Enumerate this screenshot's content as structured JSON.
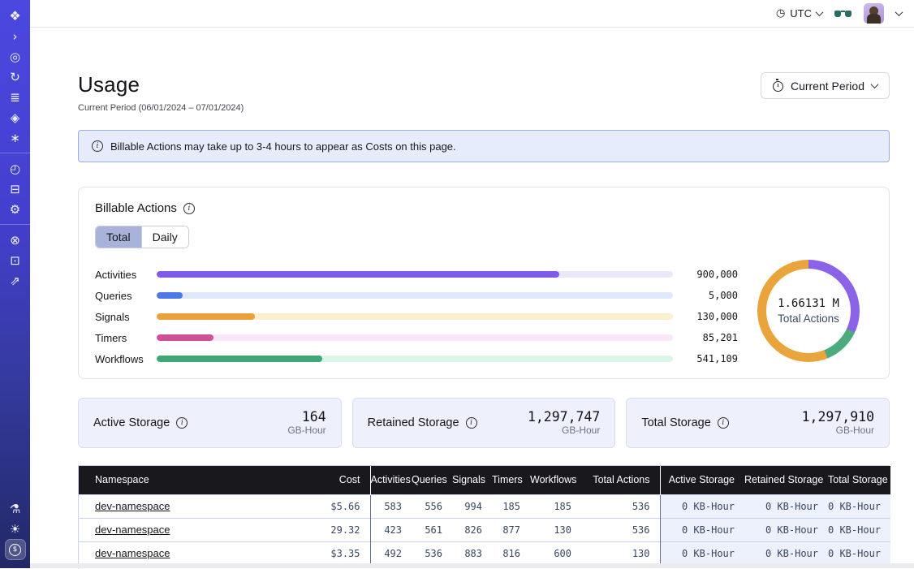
{
  "sidebar": {
    "groups": [
      {
        "items": [
          {
            "name": "temporal-logo",
            "glyph": "❖"
          },
          {
            "name": "collapse",
            "glyph": "›"
          },
          {
            "name": "namespaces",
            "glyph": "◎"
          },
          {
            "name": "schedules",
            "glyph": "↻"
          },
          {
            "name": "layers",
            "glyph": "≣"
          },
          {
            "name": "deployments",
            "glyph": "◈"
          },
          {
            "name": "nexus",
            "glyph": "∗"
          }
        ]
      },
      {
        "items": [
          {
            "name": "usage-gauge",
            "glyph": "◴"
          },
          {
            "name": "billing-window",
            "glyph": "⊟"
          },
          {
            "name": "settings-gear",
            "glyph": "⚙"
          }
        ]
      },
      {
        "items": [
          {
            "name": "support",
            "glyph": "⊗"
          },
          {
            "name": "docs",
            "glyph": "⊡"
          },
          {
            "name": "quickstart-rocket",
            "glyph": "⇗"
          }
        ]
      }
    ],
    "footer_items": [
      {
        "name": "labs-flask",
        "glyph": "⚗"
      },
      {
        "name": "theme-sun",
        "glyph": "☀"
      },
      {
        "name": "usage-billing-dollar",
        "glyph": "$"
      }
    ]
  },
  "topbar": {
    "timezone": "UTC"
  },
  "header": {
    "title": "Usage",
    "subtitle": "Current Period (06/01/2024 – 07/01/2024)",
    "period_button_label": "Current Period"
  },
  "banner": {
    "text": "Billable Actions may take up to 3-4 hours to appear as Costs on this page."
  },
  "billable_actions": {
    "title": "Billable Actions",
    "tabs": [
      {
        "label": "Total"
      },
      {
        "label": "Daily"
      }
    ],
    "active_tab": "Total",
    "bars": [
      {
        "label": "Activities",
        "value": "900,000",
        "percent": 78,
        "color": "#7e5bea",
        "track": "#ece6fb"
      },
      {
        "label": "Queries",
        "value": "5,000",
        "percent": 5,
        "color": "#4d78e8",
        "track": "#dfe8fa"
      },
      {
        "label": "Signals",
        "value": "130,000",
        "percent": 19,
        "color": "#e9a23b",
        "track": "#fbf0d0"
      },
      {
        "label": "Timers",
        "value": "85,201",
        "percent": 11,
        "color": "#d04f97",
        "track": "#fae6f6"
      },
      {
        "label": "Workflows",
        "value": "541,109",
        "percent": 32,
        "color": "#41a777",
        "track": "#dbf5e9"
      }
    ],
    "donut": {
      "center_value": "1.66131 M",
      "center_label": "Total Actions",
      "segments": [
        {
          "name": "activities",
          "color": "#8a63e8",
          "start_deg": 0,
          "end_deg": 115
        },
        {
          "name": "workflows",
          "color": "#4cab7d",
          "start_deg": 115,
          "end_deg": 158
        },
        {
          "name": "signals",
          "color": "#eaa43c",
          "start_deg": 158,
          "end_deg": 360
        }
      ]
    }
  },
  "storage_cards": [
    {
      "label": "Active Storage",
      "value": "164",
      "unit": "GB-Hour"
    },
    {
      "label": "Retained Storage",
      "value": "1,297,747",
      "unit": "GB-Hour"
    },
    {
      "label": "Total Storage",
      "value": "1,297,910",
      "unit": "GB-Hour"
    }
  ],
  "table": {
    "columns": [
      "Namespace",
      "Cost",
      "Activities",
      "Queries",
      "Signals",
      "Timers",
      "Workflows",
      "Total Actions",
      "Active Storage",
      "Retained Storage",
      "Total Storage"
    ],
    "rows": [
      {
        "namespace": "dev-namespace",
        "cost": "$5.66",
        "activities": "583",
        "queries": "556",
        "signals": "994",
        "timers": "185",
        "workflows": "185",
        "total_actions": "536",
        "active_storage": "0 KB-Hour",
        "retained_storage": "0 KB-Hour",
        "total_storage": "0 KB-Hour"
      },
      {
        "namespace": "dev-namespace",
        "cost": "29.32",
        "activities": "423",
        "queries": "561",
        "signals": "826",
        "timers": "877",
        "workflows": "130",
        "total_actions": "536",
        "active_storage": "0 KB-Hour",
        "retained_storage": "0 KB-Hour",
        "total_storage": "0 KB-Hour"
      },
      {
        "namespace": "dev-namespace",
        "cost": "$3.35",
        "activities": "492",
        "queries": "536",
        "signals": "883",
        "timers": "816",
        "workflows": "600",
        "total_actions": "130",
        "active_storage": "0 KB-Hour",
        "retained_storage": "0 KB-Hour",
        "total_storage": "0 KB-Hour"
      }
    ]
  }
}
